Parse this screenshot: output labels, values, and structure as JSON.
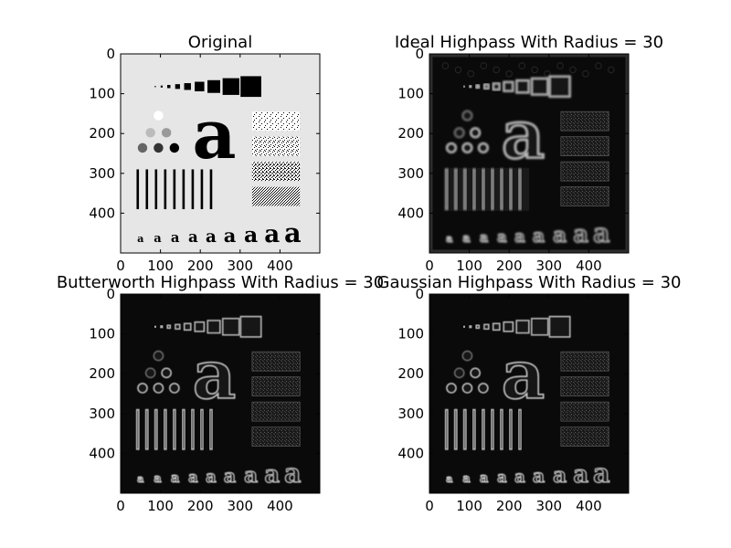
{
  "figure": {
    "panels": [
      {
        "id": "original",
        "title": "Original",
        "style": "original",
        "x_ticks": [
          "0",
          "100",
          "200",
          "300",
          "400"
        ],
        "y_ticks": [
          "0",
          "100",
          "200",
          "300",
          "400"
        ]
      },
      {
        "id": "ideal",
        "title": "Ideal Highpass With Radius = 30",
        "style": "ideal",
        "x_ticks": [
          "0",
          "100",
          "200",
          "300",
          "400"
        ],
        "y_ticks": [
          "0",
          "100",
          "200",
          "300",
          "400"
        ]
      },
      {
        "id": "butterworth",
        "title": "Butterworth Highpass With Radius = 30",
        "style": "butterworth",
        "x_ticks": [
          "0",
          "100",
          "200",
          "300",
          "400"
        ],
        "y_ticks": [
          "0",
          "100",
          "200",
          "300",
          "400"
        ]
      },
      {
        "id": "gaussian",
        "title": "Gaussian Highpass With Radius = 30",
        "style": "gaussian",
        "x_ticks": [
          "0",
          "100",
          "200",
          "300",
          "400"
        ],
        "y_ticks": [
          "0",
          "100",
          "200",
          "300",
          "400"
        ]
      }
    ],
    "image_glyph": "a",
    "colors": {
      "original_bg": "#e6e6e6",
      "original_fg": "#000000",
      "filtered_bg": "#0a0a0a",
      "filtered_edge": "#d8d8d8"
    }
  }
}
